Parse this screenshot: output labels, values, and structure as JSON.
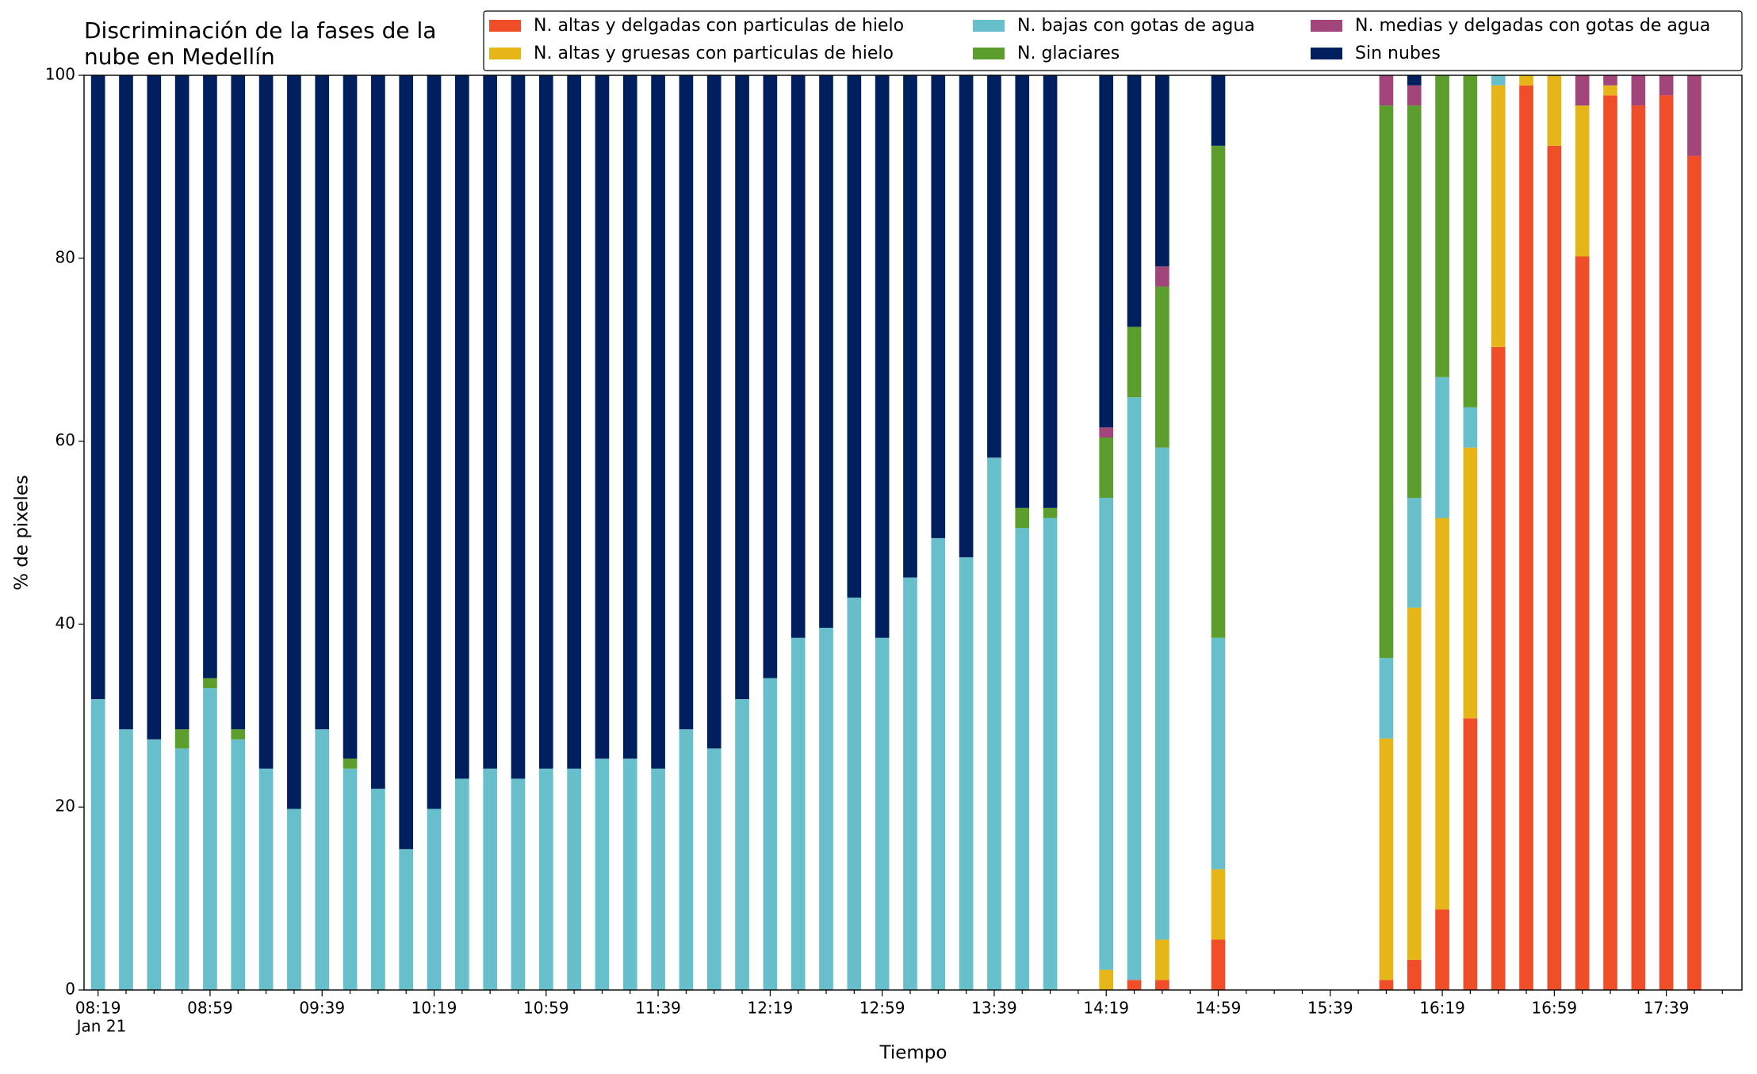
{
  "chart_data": {
    "type": "stacked_bar",
    "title": [
      "Discriminación de la fases de la",
      "nube en Medellín"
    ],
    "x_label": "Tiempo",
    "y_label": "% de pixeles",
    "date_label": "Jan 21",
    "categories": [
      "08:19",
      null,
      null,
      null,
      "08:59",
      null,
      null,
      null,
      "09:39",
      null,
      null,
      null,
      "10:19",
      null,
      null,
      null,
      "10:59",
      null,
      null,
      null,
      "11:39",
      null,
      null,
      null,
      "12:19",
      null,
      null,
      null,
      "12:59",
      null,
      null,
      null,
      "13:39",
      null,
      null,
      null,
      "14:19",
      null,
      null,
      null,
      "14:59",
      null,
      null,
      null,
      "15:39",
      null,
      null,
      null,
      "16:19",
      null,
      null,
      null,
      "16:59",
      null,
      null,
      null,
      "17:39",
      null,
      null
    ],
    "ylim": [
      0,
      100
    ],
    "yticks": [
      0,
      20,
      40,
      60,
      80,
      100
    ],
    "legend": "upper right",
    "series": [
      {
        "name": "N. altas y delgadas con particulas de hielo",
        "color": "#f04e29",
        "values": [
          0,
          0,
          0,
          0,
          0,
          0,
          0,
          0,
          0,
          0,
          0,
          0,
          0,
          0,
          0,
          0,
          0,
          0,
          0,
          0,
          0,
          0,
          0,
          0,
          0,
          0,
          0,
          0,
          0,
          0,
          0,
          0,
          0,
          0,
          0,
          null,
          0,
          1.1,
          1.1,
          null,
          5.5,
          null,
          null,
          null,
          null,
          null,
          1.1,
          3.3,
          8.8,
          29.7,
          70.3,
          98.9,
          92.3,
          80.2,
          97.8,
          96.7,
          97.8,
          91.2,
          null
        ]
      },
      {
        "name": "N. altas y gruesas con particulas de hielo",
        "color": "#e6b619",
        "values": [
          0,
          0,
          0,
          0,
          0,
          0,
          0,
          0,
          0,
          0,
          0,
          0,
          0,
          0,
          0,
          0,
          0,
          0,
          0,
          0,
          0,
          0,
          0,
          0,
          0,
          0,
          0,
          0,
          0,
          0,
          0,
          0,
          0,
          0,
          0,
          null,
          2.2,
          0,
          4.4,
          null,
          7.7,
          null,
          null,
          null,
          null,
          null,
          26.4,
          38.5,
          42.8,
          29.6,
          28.6,
          1.1,
          7.7,
          16.5,
          1.1,
          0,
          0,
          0,
          null
        ]
      },
      {
        "name": "N. bajas con gotas de agua",
        "color": "#66bfca",
        "values": [
          31.8,
          28.5,
          27.4,
          26.4,
          33,
          27.4,
          24.2,
          19.8,
          28.5,
          24.2,
          22,
          15.4,
          19.8,
          23.1,
          24.2,
          23.1,
          24.2,
          24.2,
          25.3,
          25.3,
          24.2,
          28.5,
          26.4,
          31.8,
          34.1,
          38.5,
          39.6,
          42.9,
          38.5,
          45.1,
          49.4,
          47.3,
          58.2,
          50.5,
          51.6,
          null,
          51.6,
          63.7,
          53.8,
          null,
          25.3,
          null,
          null,
          null,
          null,
          null,
          8.8,
          12,
          15.4,
          4.4,
          1.1,
          0,
          0,
          0,
          0,
          0,
          0,
          0,
          null
        ]
      },
      {
        "name": "N. glaciares",
        "color": "#5c9e2e",
        "values": [
          0,
          0,
          0,
          2.1,
          1.1,
          1.1,
          0,
          0,
          0,
          1.1,
          0,
          0,
          0,
          0,
          0,
          0,
          0,
          0,
          0,
          0,
          0,
          0,
          0,
          0,
          0,
          0,
          0,
          0,
          0,
          0,
          0,
          0,
          0,
          2.2,
          1.1,
          null,
          6.6,
          7.7,
          17.6,
          null,
          53.8,
          null,
          null,
          null,
          null,
          null,
          60.4,
          42.9,
          33,
          36.3,
          0,
          0,
          0,
          0,
          0,
          0,
          0,
          0,
          null
        ]
      },
      {
        "name": "N. medias y delgadas con gotas de agua",
        "color": "#a1457a",
        "values": [
          0,
          0,
          0,
          0,
          0,
          0,
          0,
          0,
          0,
          0,
          0,
          0,
          0,
          0,
          0,
          0,
          0,
          0,
          0,
          0,
          0,
          0,
          0,
          0,
          0,
          0,
          0,
          0,
          0,
          0,
          0,
          0,
          0,
          0,
          0,
          null,
          1.1,
          0,
          2.2,
          null,
          0,
          null,
          null,
          null,
          null,
          null,
          3.3,
          2.2,
          0,
          0,
          0,
          0,
          0,
          3.3,
          1.1,
          3.3,
          2.2,
          8.8,
          null
        ]
      },
      {
        "name": "Sin nubes",
        "color": "#001f5f",
        "values": [
          68.2,
          71.5,
          72.6,
          71.5,
          65.9,
          71.5,
          75.8,
          80.2,
          71.5,
          74.7,
          78,
          84.6,
          80.2,
          76.9,
          75.8,
          76.9,
          75.8,
          75.8,
          74.7,
          74.7,
          75.8,
          71.5,
          73.6,
          68.2,
          65.9,
          61.5,
          60.4,
          57.1,
          61.5,
          54.9,
          50.6,
          52.7,
          41.8,
          47.3,
          47.3,
          null,
          38.5,
          27.5,
          20.9,
          null,
          7.7,
          null,
          null,
          null,
          null,
          null,
          0,
          1.1,
          0,
          0,
          0,
          0,
          0,
          0,
          0,
          0,
          0,
          0,
          null
        ]
      }
    ]
  }
}
